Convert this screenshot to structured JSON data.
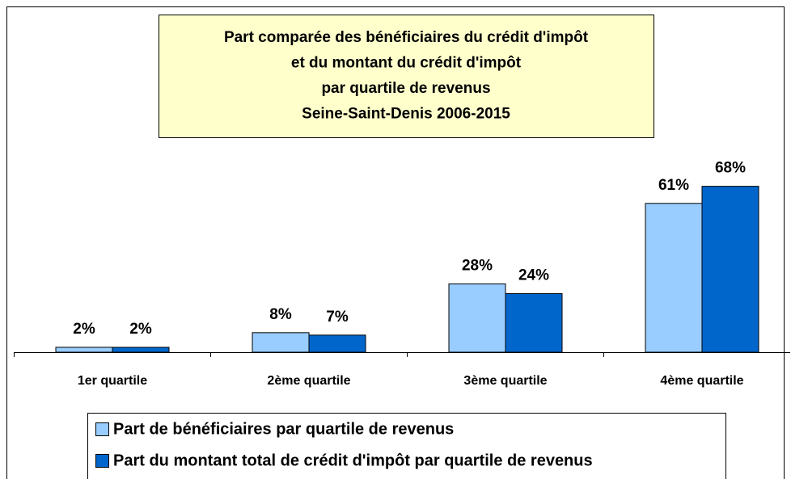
{
  "chart_data": {
    "type": "bar",
    "title": [
      "Part comparée des bénéficiaires du crédit d'impôt",
      "et du montant du crédit d'impôt",
      "par quartile de revenus",
      "Seine-Saint-Denis 2006-2015"
    ],
    "categories": [
      "1er quartile",
      "2ème quartile",
      "3ème quartile",
      "4ème quartile"
    ],
    "series": [
      {
        "name": "Part de bénéficiaires par quartile de revenus",
        "color": "#99ccff",
        "values": [
          2,
          8,
          28,
          61
        ],
        "value_labels": [
          "2%",
          "8%",
          "28%",
          "61%"
        ]
      },
      {
        "name": "Part du montant total de crédit d'impôt par quartile de revenus",
        "color": "#0066cc",
        "values": [
          2,
          7,
          24,
          68
        ],
        "value_labels": [
          "2%",
          "7%",
          "24%",
          "68%"
        ]
      }
    ],
    "ylim": [
      0,
      100
    ]
  }
}
